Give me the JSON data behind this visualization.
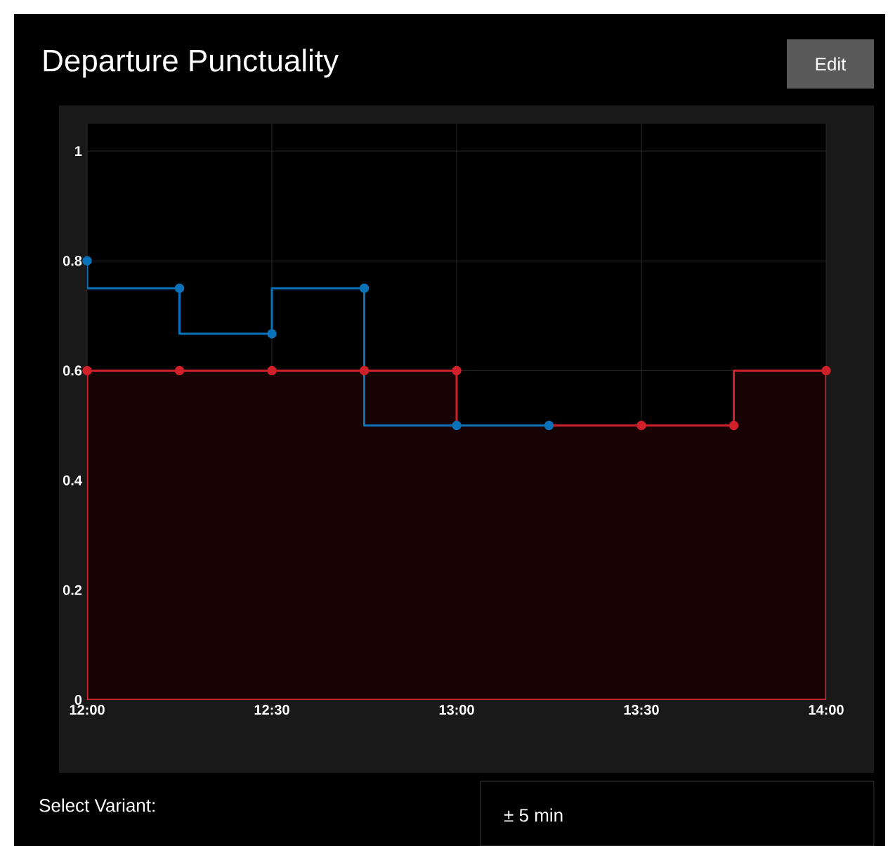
{
  "chart_data": {
    "type": "step",
    "title": "Departure Punctuality",
    "xlim": [
      12,
      14
    ],
    "ylim": [
      0,
      1.05
    ],
    "xticks": [
      {
        "value": 12,
        "label": "12:00"
      },
      {
        "value": 12.5,
        "label": "12:30"
      },
      {
        "value": 13,
        "label": "13:00"
      },
      {
        "value": 13.5,
        "label": "13:30"
      },
      {
        "value": 14,
        "label": "14:00"
      }
    ],
    "yticks": [
      0,
      0.2,
      0.4,
      0.6,
      0.8,
      1
    ],
    "grid": true,
    "marker": "circle",
    "series": [
      {
        "type": "area",
        "color": "#d0202a",
        "x": [
          12,
          12.25,
          12.5,
          12.75,
          13,
          13.5,
          13.75,
          14
        ],
        "values": [
          0.6,
          0.6,
          0.6,
          0.6,
          0.6,
          0.5,
          0.5,
          0.6
        ]
      },
      {
        "color": "#0a72b8",
        "x": [
          12,
          12.25,
          12.5,
          12.75,
          13,
          13.25
        ],
        "values": [
          0.8,
          0.75,
          0.667,
          0.75,
          0.5,
          0.5
        ]
      }
    ],
    "annotations": [
      "Edit",
      "Select Variant:",
      "± 5 min"
    ]
  }
}
